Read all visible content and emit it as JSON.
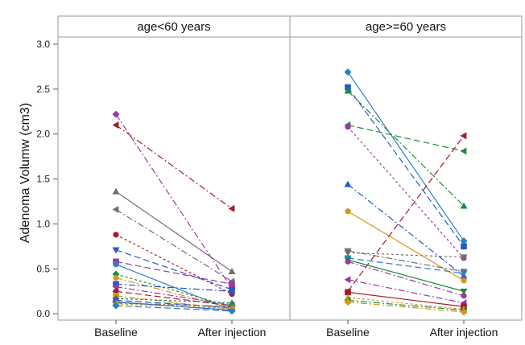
{
  "chart_data": {
    "type": "line",
    "ylabel": "Adenoma Volumw (cm3)",
    "ylim": [
      -0.07,
      3.08
    ],
    "yticks": [
      "0.0",
      "0.5",
      "1.0",
      "1.5",
      "2.0",
      "2.5",
      "3.0"
    ],
    "categories": [
      "Baseline",
      "After injection"
    ],
    "grid": false,
    "panels": [
      {
        "title": "age<60 years",
        "series": [
          {
            "values": [
              2.22,
              0.28
            ],
            "color": "#9a38a4",
            "marker": "diamond",
            "dash": "8,3,2,3"
          },
          {
            "values": [
              2.1,
              1.17
            ],
            "color": "#a31d2b",
            "marker": "triangle-left",
            "dash": "8,3,2,3"
          },
          {
            "values": [
              1.36,
              0.47
            ],
            "color": "#707070",
            "marker": "triangle",
            "dash": ""
          },
          {
            "values": [
              1.16,
              0.36
            ],
            "color": "#707070",
            "marker": "triangle-left",
            "dash": "8,3,2,3"
          },
          {
            "values": [
              0.88,
              0.22
            ],
            "color": "#a31d2b",
            "marker": "circle",
            "dash": "3,3"
          },
          {
            "values": [
              0.71,
              0.27
            ],
            "color": "#2559c9",
            "marker": "triangle-down",
            "dash": "8,4"
          },
          {
            "values": [
              0.58,
              0.33
            ],
            "color": "#9a38a4",
            "marker": "square",
            "dash": "8,4"
          },
          {
            "values": [
              0.55,
              0.04
            ],
            "color": "#2a7fc9",
            "marker": "circle",
            "dash": ""
          },
          {
            "values": [
              0.44,
              0.08
            ],
            "color": "#1a8c3e",
            "marker": "diamond",
            "dash": "3,3"
          },
          {
            "values": [
              0.4,
              0.06
            ],
            "color": "#d6961a",
            "marker": "circle",
            "dash": "8,3,2,3"
          },
          {
            "values": [
              0.33,
              0.25
            ],
            "color": "#2559c9",
            "marker": "square",
            "dash": "8,3,2,3"
          },
          {
            "values": [
              0.3,
              0.1
            ],
            "color": "#9a38a4",
            "marker": "triangle-left",
            "dash": "8,3,2,3"
          },
          {
            "values": [
              0.25,
              0.09
            ],
            "color": "#a31d2b",
            "marker": "diamond",
            "dash": "8,4"
          },
          {
            "values": [
              0.2,
              0.05
            ],
            "color": "#d6961a",
            "marker": "square",
            "dash": "8,3,2,3"
          },
          {
            "values": [
              0.17,
              0.12
            ],
            "color": "#1a8c3e",
            "marker": "triangle",
            "dash": "3,3"
          },
          {
            "values": [
              0.15,
              0.07
            ],
            "color": "#2559c9",
            "marker": "triangle-down",
            "dash": "8,4"
          },
          {
            "values": [
              0.13,
              0.04
            ],
            "color": "#2559c9",
            "marker": "diamond",
            "dash": ""
          },
          {
            "values": [
              0.12,
              0.08
            ],
            "color": "#707070",
            "marker": "triangle",
            "dash": "8,3,2,3"
          },
          {
            "values": [
              0.11,
              0.06
            ],
            "color": "#d6961a",
            "marker": "triangle-left",
            "dash": "3,3"
          },
          {
            "values": [
              0.09,
              0.03
            ],
            "color": "#2a7fc9",
            "marker": "diamond",
            "dash": "8,4"
          }
        ]
      },
      {
        "title": "age>=60 years",
        "series": [
          {
            "values": [
              2.69,
              0.81
            ],
            "color": "#2a7fc9",
            "marker": "diamond",
            "dash": ""
          },
          {
            "values": [
              2.52,
              0.75
            ],
            "color": "#2559c9",
            "marker": "square",
            "dash": "8,4"
          },
          {
            "values": [
              2.48,
              1.2
            ],
            "color": "#1a8c3e",
            "marker": "triangle",
            "dash": "8,3,2,3"
          },
          {
            "values": [
              2.1,
              1.81
            ],
            "color": "#1a8c3e",
            "marker": "triangle-left",
            "dash": "8,4"
          },
          {
            "values": [
              2.08,
              0.62
            ],
            "color": "#9a38a4",
            "marker": "circle",
            "dash": "3,3"
          },
          {
            "values": [
              1.44,
              0.42
            ],
            "color": "#2559c9",
            "marker": "triangle",
            "dash": "8,3,2,3"
          },
          {
            "values": [
              1.14,
              0.37
            ],
            "color": "#d6961a",
            "marker": "circle",
            "dash": ""
          },
          {
            "values": [
              0.7,
              0.47
            ],
            "color": "#707070",
            "marker": "triangle-down",
            "dash": "8,3,2,3"
          },
          {
            "values": [
              0.68,
              0.63
            ],
            "color": "#707070",
            "marker": "triangle-down",
            "dash": "3,3"
          },
          {
            "values": [
              0.62,
              0.45
            ],
            "color": "#2a7fc9",
            "marker": "triangle-down",
            "dash": "8,4"
          },
          {
            "values": [
              0.6,
              0.25
            ],
            "color": "#1a8c3e",
            "marker": "triangle-down",
            "dash": ""
          },
          {
            "values": [
              0.58,
              0.2
            ],
            "color": "#9a38a4",
            "marker": "circle",
            "dash": "8,3,2,3"
          },
          {
            "values": [
              0.38,
              0.12
            ],
            "color": "#9a38a4",
            "marker": "triangle-left",
            "dash": "8,3,2,3"
          },
          {
            "values": [
              0.25,
              1.98
            ],
            "color": "#a31d2b",
            "marker": "triangle-left",
            "dash": "8,4"
          },
          {
            "values": [
              0.24,
              0.08
            ],
            "color": "#a31d2b",
            "marker": "square",
            "dash": ""
          },
          {
            "values": [
              0.18,
              0.05
            ],
            "color": "#d6961a",
            "marker": "triangle",
            "dash": "3,3"
          },
          {
            "values": [
              0.15,
              0.04
            ],
            "color": "#1a8c3e",
            "marker": "triangle-left",
            "dash": "8,3,2,3"
          },
          {
            "values": [
              0.13,
              0.02
            ],
            "color": "#d6961a",
            "marker": "diamond",
            "dash": "8,3,2,3"
          }
        ]
      }
    ]
  }
}
